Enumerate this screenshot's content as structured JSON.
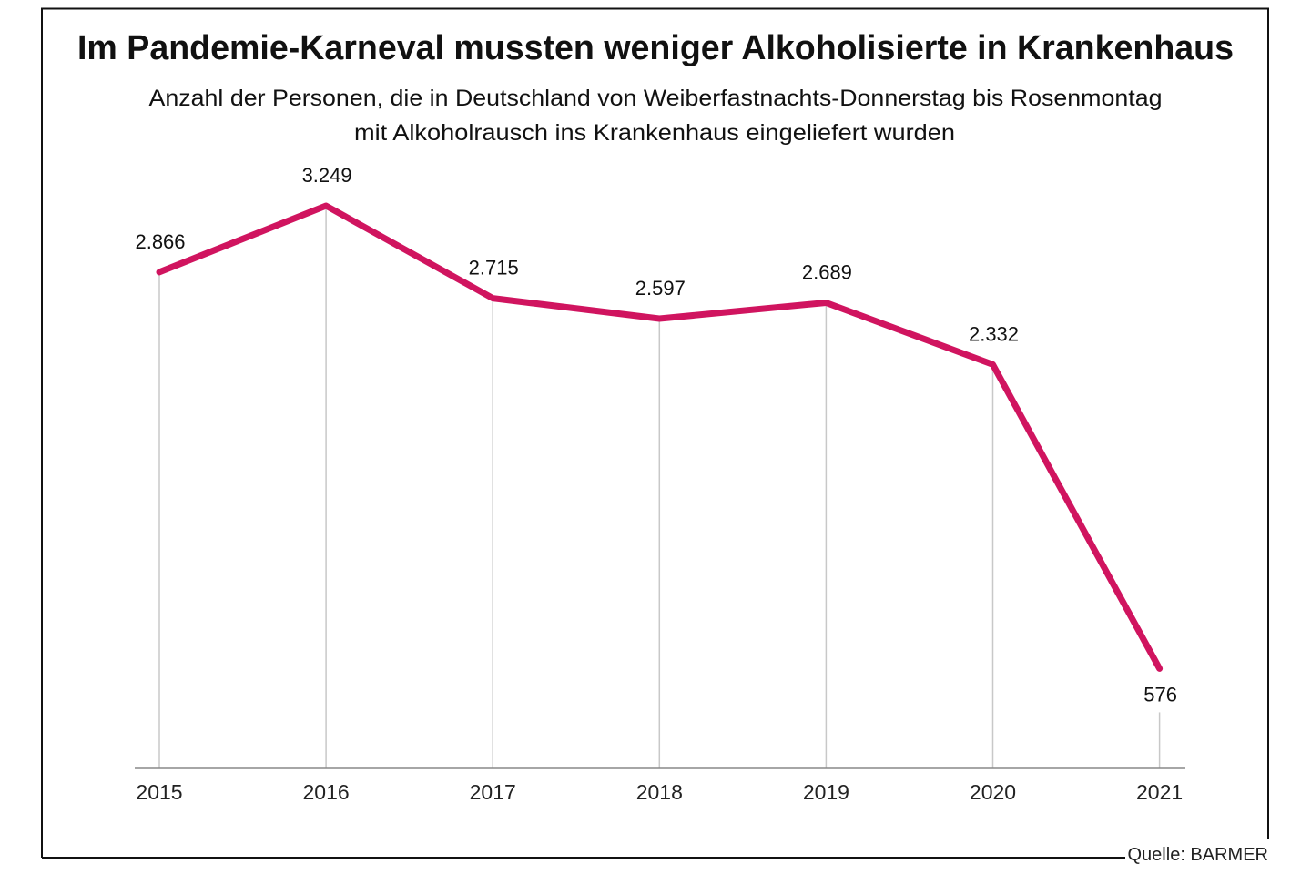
{
  "chart_data": {
    "type": "line",
    "title": "Im Pandemie-Karneval mussten weniger Alkoholisierte in Krankenhaus",
    "subtitle_lines": [
      "Anzahl der Personen, die in Deutschland von Weiberfastnachts-Donnerstag bis Rosenmontag",
      "mit Alkoholrausch ins Krankenhaus eingeliefert wurden"
    ],
    "categories": [
      "2015",
      "2016",
      "2017",
      "2018",
      "2019",
      "2020",
      "2021"
    ],
    "values": [
      2866,
      3249,
      2715,
      2597,
      2689,
      2332,
      576
    ],
    "value_labels": [
      "2.866",
      "3.249",
      "2.715",
      "2.597",
      "2.689",
      "2.332",
      "576"
    ],
    "xlabel": "",
    "ylabel": "",
    "ylim": [
      0,
      3249
    ],
    "grid": "vertical drop lines",
    "line_color": "#d0145f",
    "source": "Quelle: BARMER"
  }
}
